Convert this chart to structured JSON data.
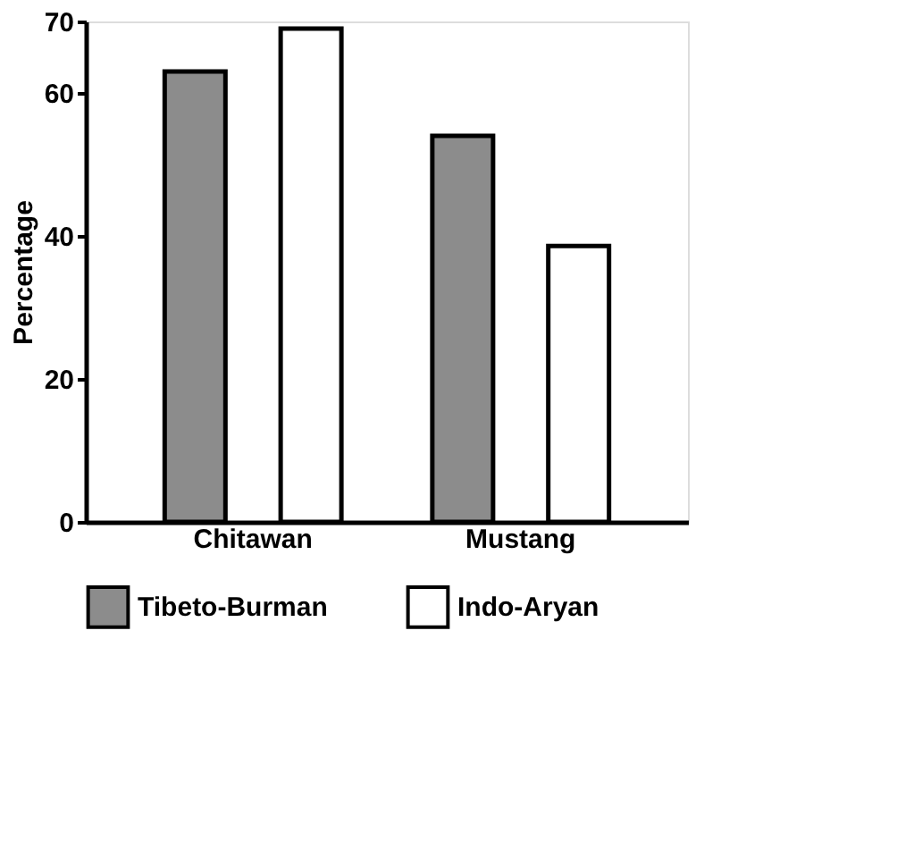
{
  "chart_data": {
    "type": "bar",
    "ylabel": "Percentage",
    "categories": [
      "Chitawan",
      "Mustang"
    ],
    "series": [
      {
        "name": "Tibeto-Burman",
        "color": "#8c8c8c",
        "values": [
          63,
          54
        ]
      },
      {
        "name": "Indo-Aryan",
        "color": "#ffffff",
        "values": [
          69,
          38.6
        ]
      }
    ],
    "ylim": [
      0,
      70
    ],
    "yticks": [
      0,
      20,
      40,
      60,
      70
    ],
    "grid": false,
    "legend": "bottom"
  }
}
